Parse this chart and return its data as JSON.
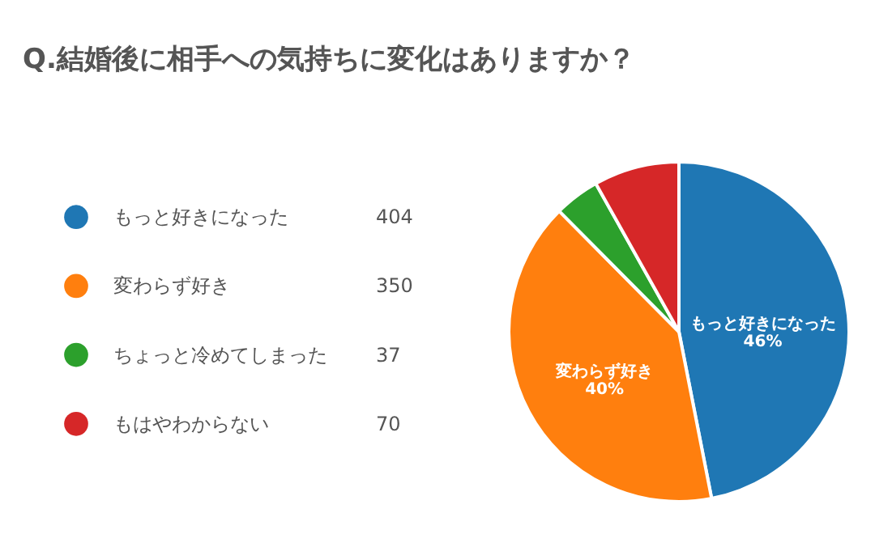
{
  "chart_data": {
    "type": "pie",
    "title": "Q.結婚後に相手への気持ちに変化はありますか？",
    "categories": [
      "もっと好きになった",
      "変わらず好き",
      "ちょっと冷めてしまった",
      "もはやわからない"
    ],
    "values": [
      404,
      350,
      37,
      70
    ],
    "colors": [
      "#1f77b4",
      "#ff7f0e",
      "#2ca02c",
      "#d62728"
    ],
    "data_labels": true,
    "annotations": [
      {
        "text": "46%",
        "x": "もっと好きになった"
      },
      {
        "text": "40%",
        "x": "変わらず好き"
      }
    ],
    "legend": "left"
  }
}
